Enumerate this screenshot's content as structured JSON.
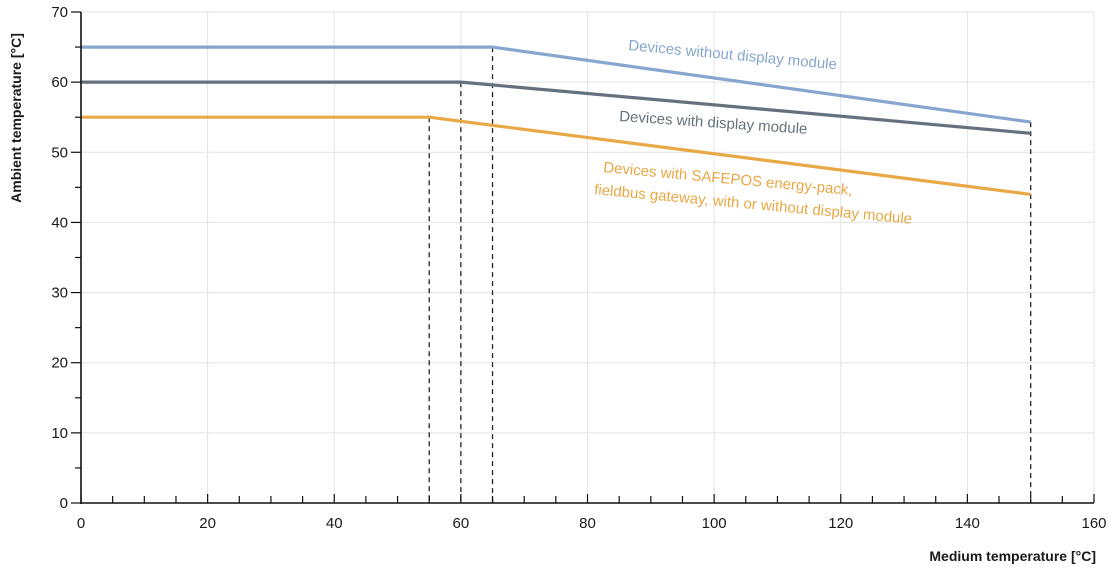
{
  "chart_data": {
    "type": "line",
    "xlabel": "Medium temperature [°C]",
    "ylabel": "Ambient temperature [°C]",
    "xlim": [
      0,
      160
    ],
    "ylim": [
      0,
      70
    ],
    "x_ticks": [
      0,
      20,
      40,
      60,
      80,
      100,
      120,
      140,
      160
    ],
    "y_ticks": [
      0,
      10,
      20,
      30,
      40,
      50,
      60,
      70
    ],
    "grid": true,
    "series": [
      {
        "name": "Devices without display module",
        "label_lines": [
          "Devices without display module"
        ],
        "color": "#86a6cd",
        "points": [
          [
            0,
            65
          ],
          [
            65,
            65
          ],
          [
            150,
            54.3
          ]
        ]
      },
      {
        "name": "Devices with display module",
        "label_lines": [
          "Devices with display module"
        ],
        "color": "#65727d",
        "points": [
          [
            0,
            60
          ],
          [
            60,
            60
          ],
          [
            150,
            52.7
          ]
        ]
      },
      {
        "name": "Devices with SAFEPOS energy-pack, fieldbus gateway, with or without display module",
        "label_lines": [
          "Devices with SAFEPOS energy-pack,",
          "fieldbus gateway, with or without display module"
        ],
        "color": "#e8a846",
        "points": [
          [
            0,
            55
          ],
          [
            55,
            55
          ],
          [
            150,
            44
          ]
        ]
      }
    ],
    "reference_lines": [
      {
        "x": 55,
        "y_top": 55
      },
      {
        "x": 60,
        "y_top": 60
      },
      {
        "x": 65,
        "y_top": 65
      },
      {
        "x": 150,
        "y_top": 54.3
      }
    ]
  }
}
